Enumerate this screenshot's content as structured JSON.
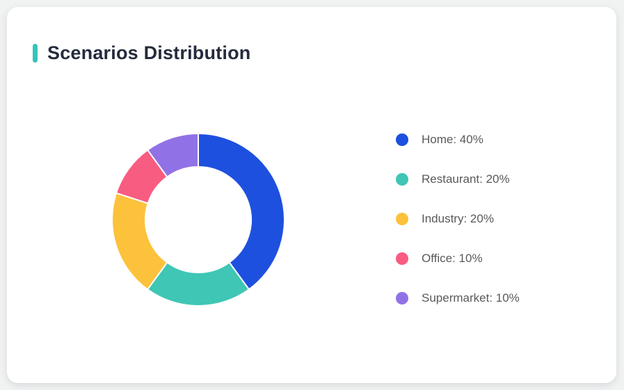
{
  "page": {
    "background_color": "#F1F2F2"
  },
  "card": {
    "title": "Scenarios Distribution",
    "accent_color": "#35C4BC",
    "background_color": "#FFFFFF",
    "title_color": "#252B3D"
  },
  "chart_data": {
    "type": "pie",
    "subtype": "donut",
    "title": "Scenarios Distribution",
    "categories": [
      "Home",
      "Restaurant",
      "Industry",
      "Office",
      "Supermarket"
    ],
    "values": [
      40,
      20,
      20,
      10,
      10
    ],
    "unit": "%",
    "colors": [
      "#1E50DF",
      "#3FC6B5",
      "#FDC23C",
      "#F85C81",
      "#9172E6"
    ],
    "start_angle_deg": 0,
    "direction": "clockwise",
    "outer_radius_px": 124,
    "inner_radius_px": 76,
    "segment_border_color": "#FFFFFF",
    "segment_border_width": 2,
    "legend": {
      "position": "right",
      "text_color": "#595959",
      "entries": [
        {
          "label": "Home: 40%",
          "color": "#1E50DF"
        },
        {
          "label": "Restaurant: 20%",
          "color": "#3FC6B5"
        },
        {
          "label": "Industry: 20%",
          "color": "#FDC23C"
        },
        {
          "label": "Office: 10%",
          "color": "#F85C81"
        },
        {
          "label": "Supermarket: 10%",
          "color": "#9172E6"
        }
      ]
    }
  }
}
